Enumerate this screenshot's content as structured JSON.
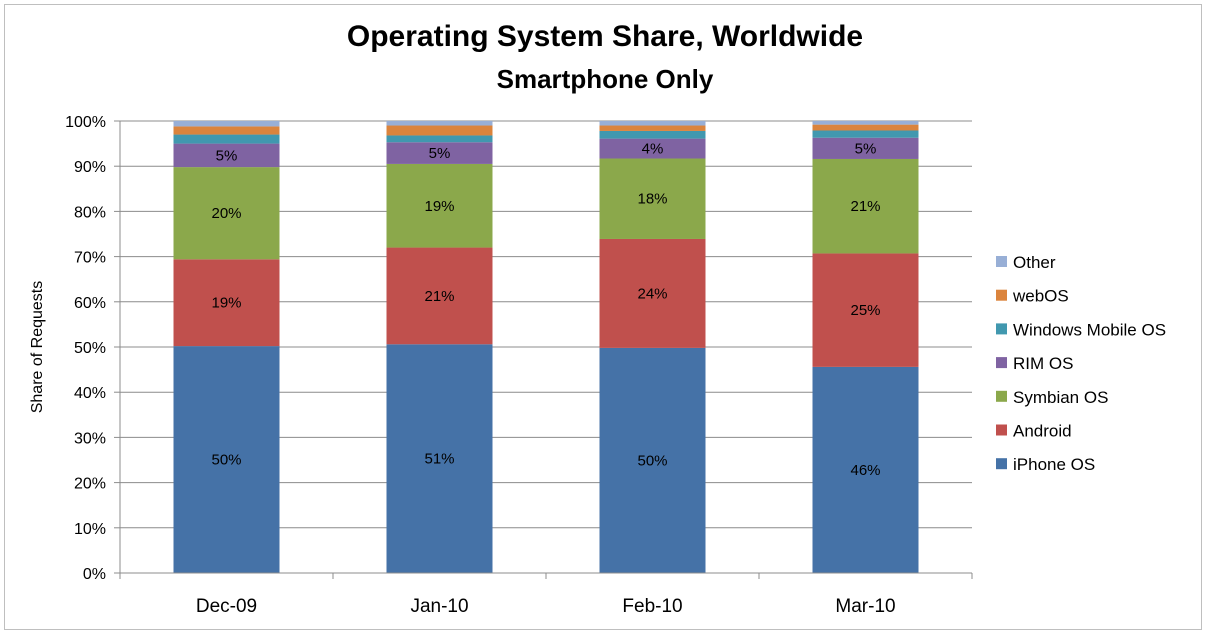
{
  "chart_data": {
    "type": "bar",
    "stacked": true,
    "title": "Operating System Share, Worldwide",
    "subtitle": "Smartphone Only",
    "ylabel": "Share of Requests",
    "xlabel": "",
    "ylim": [
      0,
      100
    ],
    "yticks": [
      "0%",
      "10%",
      "20%",
      "30%",
      "40%",
      "50%",
      "60%",
      "70%",
      "80%",
      "90%",
      "100%"
    ],
    "categories": [
      "Dec-09",
      "Jan-10",
      "Feb-10",
      "Mar-10"
    ],
    "legend_position": "right",
    "grid": true,
    "series": [
      {
        "name": "iPhone OS",
        "color": "#4572A7",
        "values": [
          50.2,
          50.6,
          49.8,
          45.6
        ],
        "labels": [
          "50%",
          "51%",
          "50%",
          "46%"
        ]
      },
      {
        "name": "Android",
        "color": "#C0504D",
        "values": [
          19.2,
          21.4,
          24.1,
          25.1
        ],
        "labels": [
          "19%",
          "21%",
          "24%",
          "25%"
        ]
      },
      {
        "name": "Symbian OS",
        "color": "#8BA84B",
        "values": [
          20.4,
          18.5,
          17.8,
          20.9
        ],
        "labels": [
          "20%",
          "19%",
          "18%",
          "21%"
        ]
      },
      {
        "name": "RIM OS",
        "color": "#7F63A2",
        "values": [
          5.2,
          4.8,
          4.4,
          4.7
        ],
        "labels": [
          "5%",
          "5%",
          "4%",
          "5%"
        ]
      },
      {
        "name": "Windows Mobile OS",
        "color": "#4198AF",
        "values": [
          2.0,
          1.5,
          1.7,
          1.6
        ],
        "labels": [
          "",
          "",
          "",
          ""
        ]
      },
      {
        "name": "webOS",
        "color": "#DB843D",
        "values": [
          1.8,
          2.2,
          1.2,
          1.3
        ],
        "labels": [
          "",
          "",
          "",
          ""
        ]
      },
      {
        "name": "Other",
        "color": "#98AFD6",
        "values": [
          1.2,
          1.0,
          1.0,
          0.8
        ],
        "labels": [
          "",
          "",
          "",
          ""
        ]
      }
    ]
  }
}
